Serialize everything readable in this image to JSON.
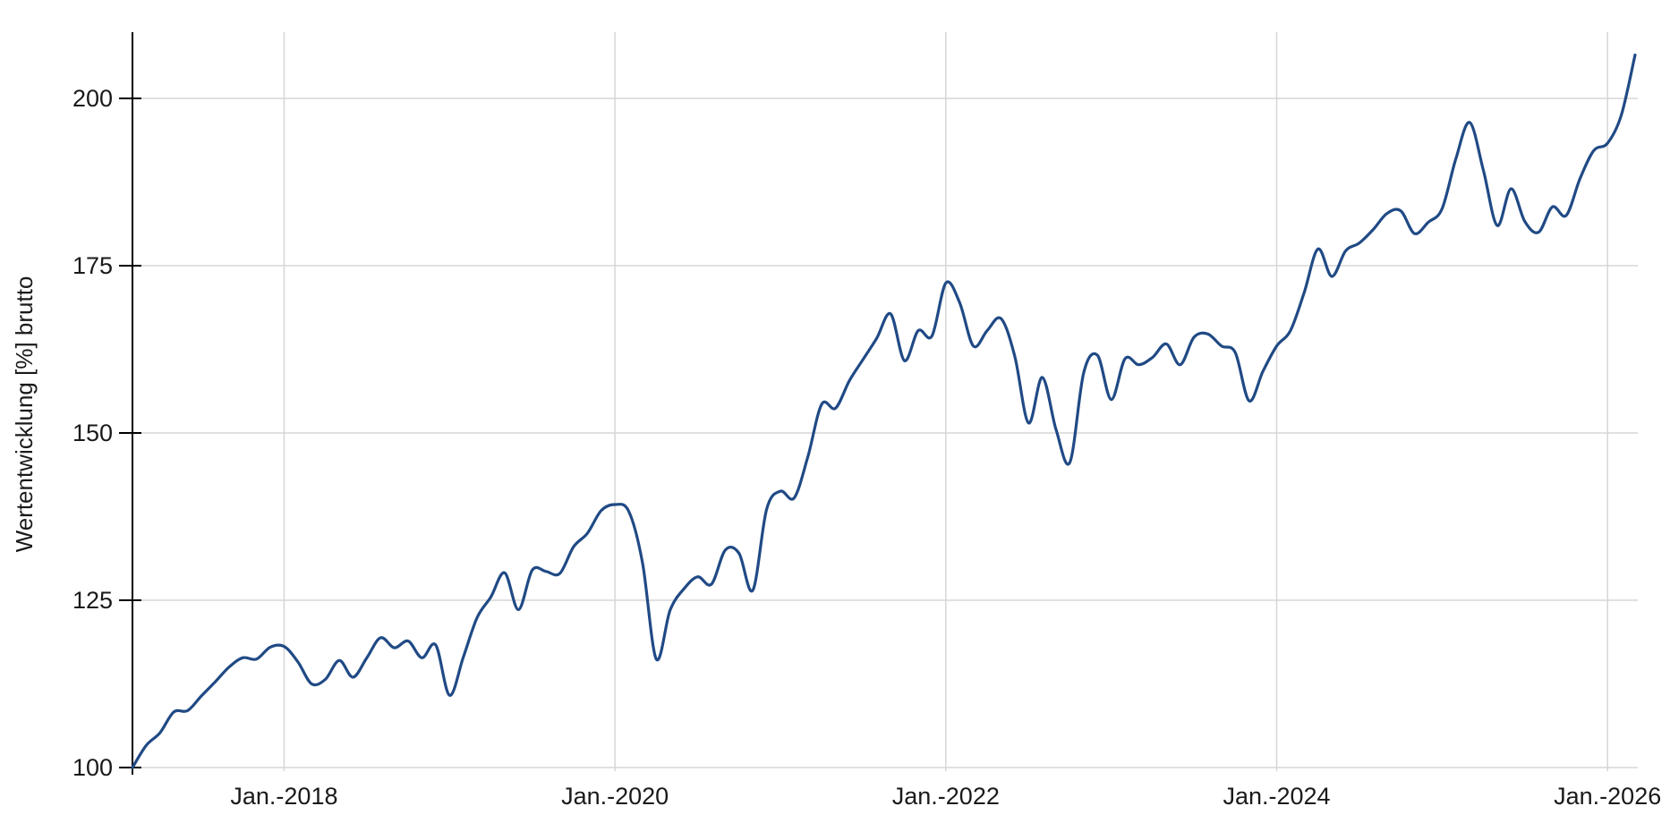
{
  "chart_data": {
    "type": "line",
    "title": "",
    "ylabel": "Wertentwicklung [%] brutto",
    "xlabel": "",
    "grid": true,
    "legend": "none",
    "x_axis": {
      "start": "2017-02",
      "end": "2026-03",
      "frequency": "monthly",
      "tick_labels": [
        "Jan.-2018",
        "Jan.-2020",
        "Jan.-2022",
        "Jan.-2024",
        "Jan.-2026"
      ],
      "tick_month_indices": [
        11,
        35,
        59,
        83,
        107
      ]
    },
    "y_axis": {
      "ticks": [
        100,
        125,
        150,
        175,
        200
      ],
      "tick_labels": [
        "100",
        "125",
        "150",
        "175",
        "200"
      ],
      "range": [
        99,
        210
      ]
    },
    "series": [
      {
        "name": "Wertentwicklung [%] brutto",
        "color": "#204a85",
        "values": [
          100.0,
          103.3,
          105.2,
          108.3,
          108.5,
          110.7,
          112.8,
          115.0,
          116.4,
          116.2,
          118.0,
          118.1,
          115.8,
          112.5,
          113.2,
          116.0,
          113.5,
          116.4,
          119.4,
          117.9,
          118.9,
          116.4,
          118.3,
          110.8,
          116.5,
          122.4,
          125.5,
          129.1,
          123.6,
          129.5,
          129.3,
          129.0,
          133.0,
          135.0,
          138.4,
          139.3,
          138.3,
          130.6,
          116.2,
          123.5,
          126.7,
          128.5,
          127.4,
          132.5,
          132.0,
          126.5,
          138.6,
          141.3,
          140.3,
          146.5,
          154.3,
          153.7,
          157.8,
          161.0,
          164.2,
          167.8,
          160.8,
          165.3,
          164.5,
          172.4,
          169.5,
          163.0,
          165.3,
          167.1,
          161.5,
          151.5,
          158.3,
          150.5,
          145.6,
          159.0,
          161.6,
          155.0,
          161.1,
          160.2,
          161.3,
          163.3,
          160.2,
          164.3,
          164.8,
          163.0,
          162.0,
          154.8,
          159.2,
          163.0,
          165.3,
          171.0,
          177.5,
          173.4,
          177.2,
          178.4,
          180.4,
          182.8,
          183.2,
          179.8,
          181.5,
          183.5,
          191.0,
          196.4,
          189.2,
          181.0,
          186.5,
          181.6,
          180.0,
          183.8,
          182.5,
          188.0,
          192.2,
          193.3,
          197.5,
          206.5
        ]
      }
    ]
  },
  "colors": {
    "background": "#ffffff",
    "gridline": "#d6d6d6",
    "axis": "#000000",
    "text": "#1a1a1a",
    "line": "#204a85"
  }
}
